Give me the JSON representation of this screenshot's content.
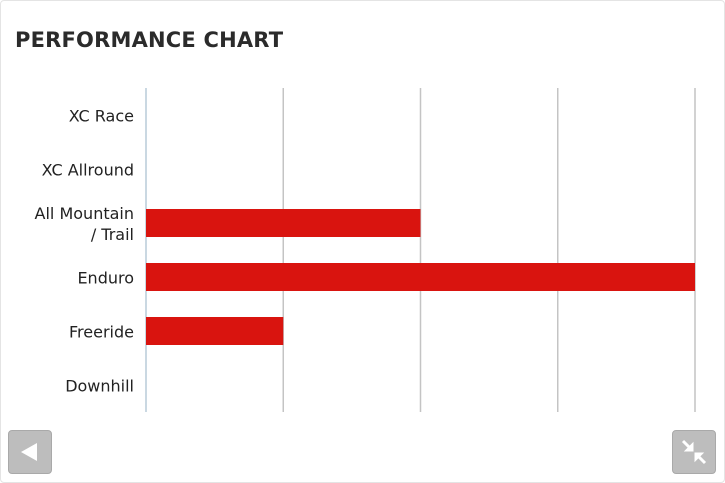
{
  "chart_data": {
    "type": "bar",
    "orientation": "horizontal",
    "title": "PERFORMANCE CHART",
    "categories": [
      "XC Race",
      "XC Allround",
      "All Mountain / Trail",
      "Enduro",
      "Freeride",
      "Downhill"
    ],
    "values": [
      0,
      0,
      2,
      4,
      1,
      0
    ],
    "color": "#d9140f",
    "xlim": [
      0,
      4
    ],
    "xticks": [
      0,
      1,
      2,
      3,
      4
    ],
    "grid": true
  }
}
